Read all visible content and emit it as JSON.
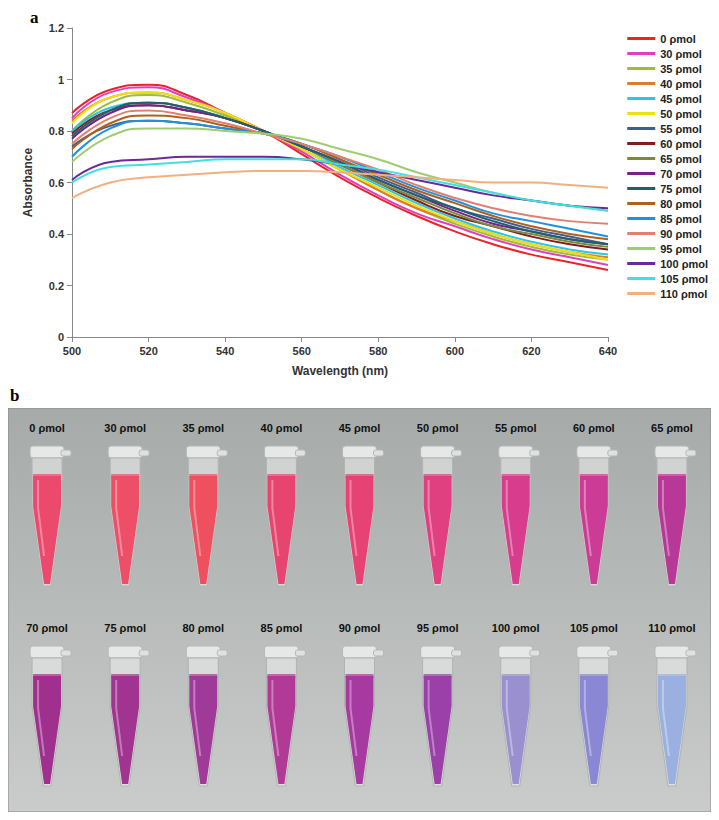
{
  "chart_data": {
    "type": "line",
    "x_label": "Wavelength (nm)",
    "y_label": "Absorbance",
    "x": [
      500,
      510,
      520,
      530,
      540,
      550,
      560,
      570,
      580,
      590,
      600,
      610,
      620,
      630,
      640
    ],
    "xlim": [
      500,
      640
    ],
    "xticks": [
      500,
      520,
      540,
      560,
      580,
      600,
      620,
      640
    ],
    "ylim": [
      0,
      1.2
    ],
    "yticks": [
      0,
      0.2,
      0.4,
      0.6,
      0.8,
      1,
      1.2
    ],
    "grid": false,
    "legend": "right",
    "series": [
      {
        "name": "0 ρmol",
        "color": "#e8262a",
        "values": [
          0.87,
          0.96,
          0.98,
          0.94,
          0.87,
          0.8,
          0.71,
          0.62,
          0.54,
          0.47,
          0.41,
          0.36,
          0.32,
          0.29,
          0.26
        ]
      },
      {
        "name": "30 ρmol",
        "color": "#e040c0",
        "values": [
          0.85,
          0.95,
          0.97,
          0.93,
          0.87,
          0.8,
          0.72,
          0.63,
          0.55,
          0.48,
          0.43,
          0.38,
          0.34,
          0.31,
          0.28
        ]
      },
      {
        "name": "35 ρmol",
        "color": "#9dbb3c",
        "values": [
          0.8,
          0.91,
          0.94,
          0.91,
          0.86,
          0.8,
          0.73,
          0.65,
          0.57,
          0.5,
          0.44,
          0.39,
          0.35,
          0.32,
          0.3
        ]
      },
      {
        "name": "40 ρmol",
        "color": "#e07b2a",
        "values": [
          0.84,
          0.93,
          0.95,
          0.92,
          0.87,
          0.8,
          0.73,
          0.65,
          0.57,
          0.5,
          0.45,
          0.4,
          0.36,
          0.33,
          0.31
        ]
      },
      {
        "name": "45 ρmol",
        "color": "#2cc6e0",
        "values": [
          0.8,
          0.89,
          0.91,
          0.89,
          0.85,
          0.8,
          0.74,
          0.66,
          0.59,
          0.52,
          0.46,
          0.41,
          0.37,
          0.34,
          0.32
        ]
      },
      {
        "name": "50 ρmol",
        "color": "#f0e010",
        "values": [
          0.83,
          0.93,
          0.95,
          0.92,
          0.87,
          0.8,
          0.73,
          0.65,
          0.58,
          0.51,
          0.45,
          0.4,
          0.36,
          0.33,
          0.3
        ]
      },
      {
        "name": "55 ρmol",
        "color": "#3f5f8f",
        "values": [
          0.74,
          0.82,
          0.84,
          0.83,
          0.81,
          0.79,
          0.75,
          0.69,
          0.62,
          0.56,
          0.5,
          0.46,
          0.42,
          0.39,
          0.36
        ]
      },
      {
        "name": "60 ρmol",
        "color": "#7b1f1f",
        "values": [
          0.79,
          0.88,
          0.9,
          0.88,
          0.85,
          0.8,
          0.74,
          0.67,
          0.6,
          0.53,
          0.47,
          0.43,
          0.39,
          0.36,
          0.34
        ]
      },
      {
        "name": "65 ρmol",
        "color": "#7a8a3a",
        "values": [
          0.78,
          0.88,
          0.91,
          0.89,
          0.85,
          0.8,
          0.74,
          0.67,
          0.6,
          0.54,
          0.48,
          0.43,
          0.4,
          0.37,
          0.35
        ]
      },
      {
        "name": "70 ρmol",
        "color": "#7a1f8a",
        "values": [
          0.77,
          0.87,
          0.9,
          0.88,
          0.85,
          0.8,
          0.74,
          0.68,
          0.61,
          0.55,
          0.49,
          0.44,
          0.41,
          0.38,
          0.36
        ]
      },
      {
        "name": "75 ρmol",
        "color": "#1f6070",
        "values": [
          0.78,
          0.88,
          0.91,
          0.89,
          0.85,
          0.8,
          0.74,
          0.68,
          0.61,
          0.55,
          0.5,
          0.45,
          0.41,
          0.38,
          0.36
        ]
      },
      {
        "name": "80 ρmol",
        "color": "#b0601a",
        "values": [
          0.73,
          0.83,
          0.86,
          0.85,
          0.82,
          0.79,
          0.75,
          0.69,
          0.63,
          0.57,
          0.52,
          0.47,
          0.43,
          0.4,
          0.38
        ]
      },
      {
        "name": "85 ρmol",
        "color": "#2090e0",
        "values": [
          0.7,
          0.81,
          0.84,
          0.83,
          0.81,
          0.79,
          0.75,
          0.7,
          0.64,
          0.58,
          0.53,
          0.48,
          0.45,
          0.42,
          0.39
        ]
      },
      {
        "name": "90 ρmol",
        "color": "#e08070",
        "values": [
          0.75,
          0.85,
          0.88,
          0.86,
          0.83,
          0.79,
          0.75,
          0.7,
          0.65,
          0.59,
          0.54,
          0.5,
          0.47,
          0.45,
          0.44
        ]
      },
      {
        "name": "95 ρmol",
        "color": "#a0cc70",
        "values": [
          0.68,
          0.78,
          0.81,
          0.81,
          0.8,
          0.79,
          0.77,
          0.73,
          0.69,
          0.64,
          0.6,
          0.56,
          0.53,
          0.51,
          0.49
        ]
      },
      {
        "name": "100 ρmol",
        "color": "#6a2a9a",
        "values": [
          0.61,
          0.68,
          0.69,
          0.7,
          0.7,
          0.7,
          0.69,
          0.67,
          0.64,
          0.61,
          0.58,
          0.55,
          0.53,
          0.51,
          0.5
        ]
      },
      {
        "name": "105 ρmol",
        "color": "#40e0e0",
        "values": [
          0.6,
          0.66,
          0.67,
          0.68,
          0.69,
          0.69,
          0.69,
          0.67,
          0.65,
          0.62,
          0.59,
          0.56,
          0.53,
          0.51,
          0.49
        ]
      },
      {
        "name": "110 ρmol",
        "color": "#f0b080",
        "values": [
          0.54,
          0.6,
          0.62,
          0.63,
          0.64,
          0.645,
          0.645,
          0.64,
          0.63,
          0.62,
          0.61,
          0.6,
          0.6,
          0.59,
          0.58
        ]
      }
    ]
  },
  "panel_letters": [
    "a",
    "b"
  ],
  "photo": {
    "tubes": [
      {
        "label": "0 ρmol",
        "color": "#ec4a6c"
      },
      {
        "label": "30 ρmol",
        "color": "#ee4f68"
      },
      {
        "label": "35 ρmol",
        "color": "#ee5060"
      },
      {
        "label": "40 ρmol",
        "color": "#e84470"
      },
      {
        "label": "45 ρmol",
        "color": "#e64274"
      },
      {
        "label": "50 ρmol",
        "color": "#e04080"
      },
      {
        "label": "55 ρmol",
        "color": "#d83c8c"
      },
      {
        "label": "60 ρmol",
        "color": "#cc3c96"
      },
      {
        "label": "65 ρmol",
        "color": "#b83898"
      },
      {
        "label": "70 ρmol",
        "color": "#a0308e"
      },
      {
        "label": "75 ρmol",
        "color": "#a03490"
      },
      {
        "label": "80 ρmol",
        "color": "#a03a98"
      },
      {
        "label": "85 ρmol",
        "color": "#b03a96"
      },
      {
        "label": "90 ρmol",
        "color": "#a63aa0"
      },
      {
        "label": "95 ρmol",
        "color": "#9a40a8"
      },
      {
        "label": "100 ρmol",
        "color": "#9a90d0"
      },
      {
        "label": "105 ρmol",
        "color": "#8a88d4"
      },
      {
        "label": "110 ρmol",
        "color": "#9ab0e0"
      }
    ]
  }
}
